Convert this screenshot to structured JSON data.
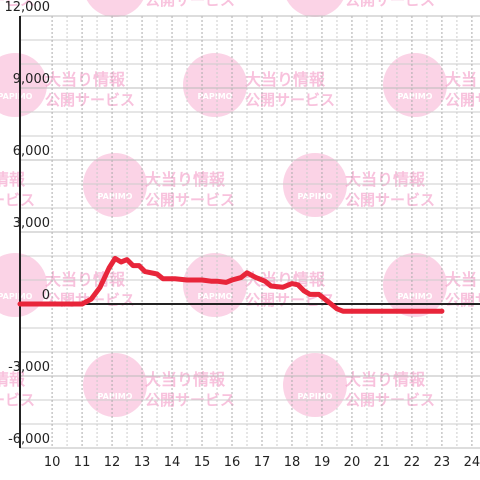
{
  "chart_data": {
    "type": "line",
    "watermark": {
      "logo": "PAPIMO",
      "line1": "大当り情報",
      "line2": "公開サービス"
    },
    "x": [
      8.93,
      11.0,
      11.3,
      11.6,
      11.9,
      12.1,
      12.3,
      12.5,
      12.7,
      12.9,
      13.1,
      13.5,
      13.7,
      14.1,
      14.5,
      15.0,
      15.3,
      15.5,
      15.8,
      16.0,
      16.3,
      16.5,
      16.8,
      17.1,
      17.3,
      17.7,
      18.0,
      18.2,
      18.4,
      18.6,
      18.9,
      19.2,
      19.5,
      19.7,
      20.0,
      23.0
    ],
    "series": [
      {
        "color": "#e8253a",
        "values": [
          0,
          0,
          200,
          700,
          1500,
          1900,
          1750,
          1850,
          1600,
          1600,
          1350,
          1250,
          1050,
          1050,
          1000,
          1000,
          950,
          950,
          900,
          1000,
          1100,
          1300,
          1100,
          950,
          750,
          700,
          850,
          800,
          550,
          400,
          400,
          100,
          -200,
          -300,
          -300,
          -300
        ]
      }
    ],
    "xlim": [
      8.93,
      24.27
    ],
    "ylim": [
      -6000,
      12000
    ],
    "xticks": [
      10,
      11,
      12,
      13,
      14,
      15,
      16,
      17,
      18,
      19,
      20,
      21,
      22,
      23,
      24
    ],
    "xminor": [
      10.5,
      11.5,
      12.5,
      13.5,
      14.5,
      15.5,
      16.5,
      17.5,
      18.5,
      19.5,
      20.5,
      21.5,
      22.5,
      23.5
    ],
    "yticks": [
      {
        "value": -6000,
        "label": "-6,000"
      },
      {
        "value": -3000,
        "label": "-3,000"
      },
      0,
      {
        "value": 3000,
        "label": "3,000"
      },
      {
        "value": 6000,
        "label": "6,000"
      },
      {
        "value": 9000,
        "label": "9,000"
      },
      {
        "value": 12000,
        "label": "12,000"
      }
    ],
    "yminor": [
      -5000,
      -4000,
      -2000,
      -1000,
      1000,
      2000,
      4000,
      5000,
      7000,
      8000,
      10000,
      11000
    ],
    "grid": true
  }
}
